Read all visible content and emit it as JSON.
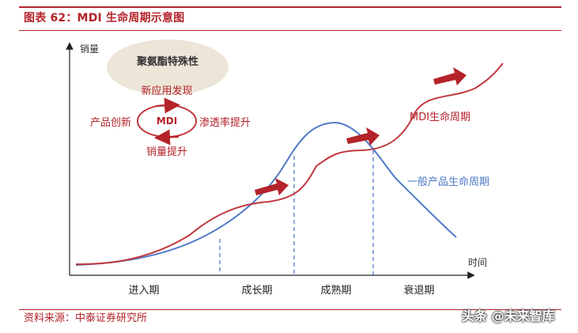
{
  "title": "图表 62：MDI 生命周期示意图",
  "source": "资料来源：中泰证券研究所",
  "watermark": "头条 @未来智库",
  "axes": {
    "y_label": "销量",
    "x_label": "时间"
  },
  "stages": [
    "进入期",
    "成长期",
    "成熟期",
    "衰退期"
  ],
  "curves": {
    "mdi_label": "MDI生命周期",
    "general_label": "一般产品生命周期"
  },
  "bubble": {
    "heading": "聚氨酯特殊性",
    "center": "MDI",
    "top": "新应用发现",
    "left": "产品创新",
    "right": "渗透率提升",
    "bottom": "销量提升"
  },
  "colors": {
    "accent_red": "#b4232a",
    "curve_red": "#c0393f",
    "curve_blue": "#4f7ac7",
    "bubble_fill": "#ece5d8"
  }
}
